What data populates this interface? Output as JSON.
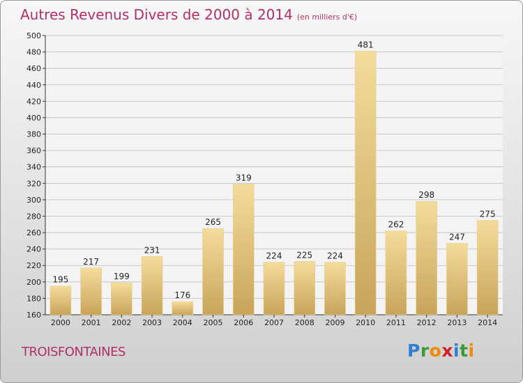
{
  "title": "Autres Revenus Divers de 2000 à 2014",
  "subtitle": "(en milliers d'€)",
  "commune": "TROISFONTAINES",
  "logo": {
    "letters": [
      "P",
      "r",
      "o",
      "x",
      "i",
      "t",
      "i"
    ],
    "colors": [
      "#2f7fd0",
      "#3a9a3a",
      "#f08a00",
      "#d0202a",
      "#2f7fd0",
      "#3a9a3a",
      "#f08a00"
    ]
  },
  "colors": {
    "title": "#b0306a",
    "bar_top": "#f5dc9c",
    "bar_bottom": "#c8a45a",
    "grid": "#bdbdbd"
  },
  "chart_data": {
    "type": "bar",
    "title": "Autres Revenus Divers de 2000 à 2014",
    "subtitle": "(en milliers d'€)",
    "categories": [
      "2000",
      "2001",
      "2002",
      "2003",
      "2004",
      "2005",
      "2006",
      "2007",
      "2008",
      "2009",
      "2010",
      "2011",
      "2012",
      "2013",
      "2014"
    ],
    "values": [
      195,
      217,
      199,
      231,
      176,
      265,
      319,
      224,
      225,
      224,
      481,
      262,
      298,
      247,
      275
    ],
    "ylim": [
      160,
      500
    ],
    "ytick_step": 20,
    "grid": true,
    "xlabel": "",
    "ylabel": ""
  }
}
